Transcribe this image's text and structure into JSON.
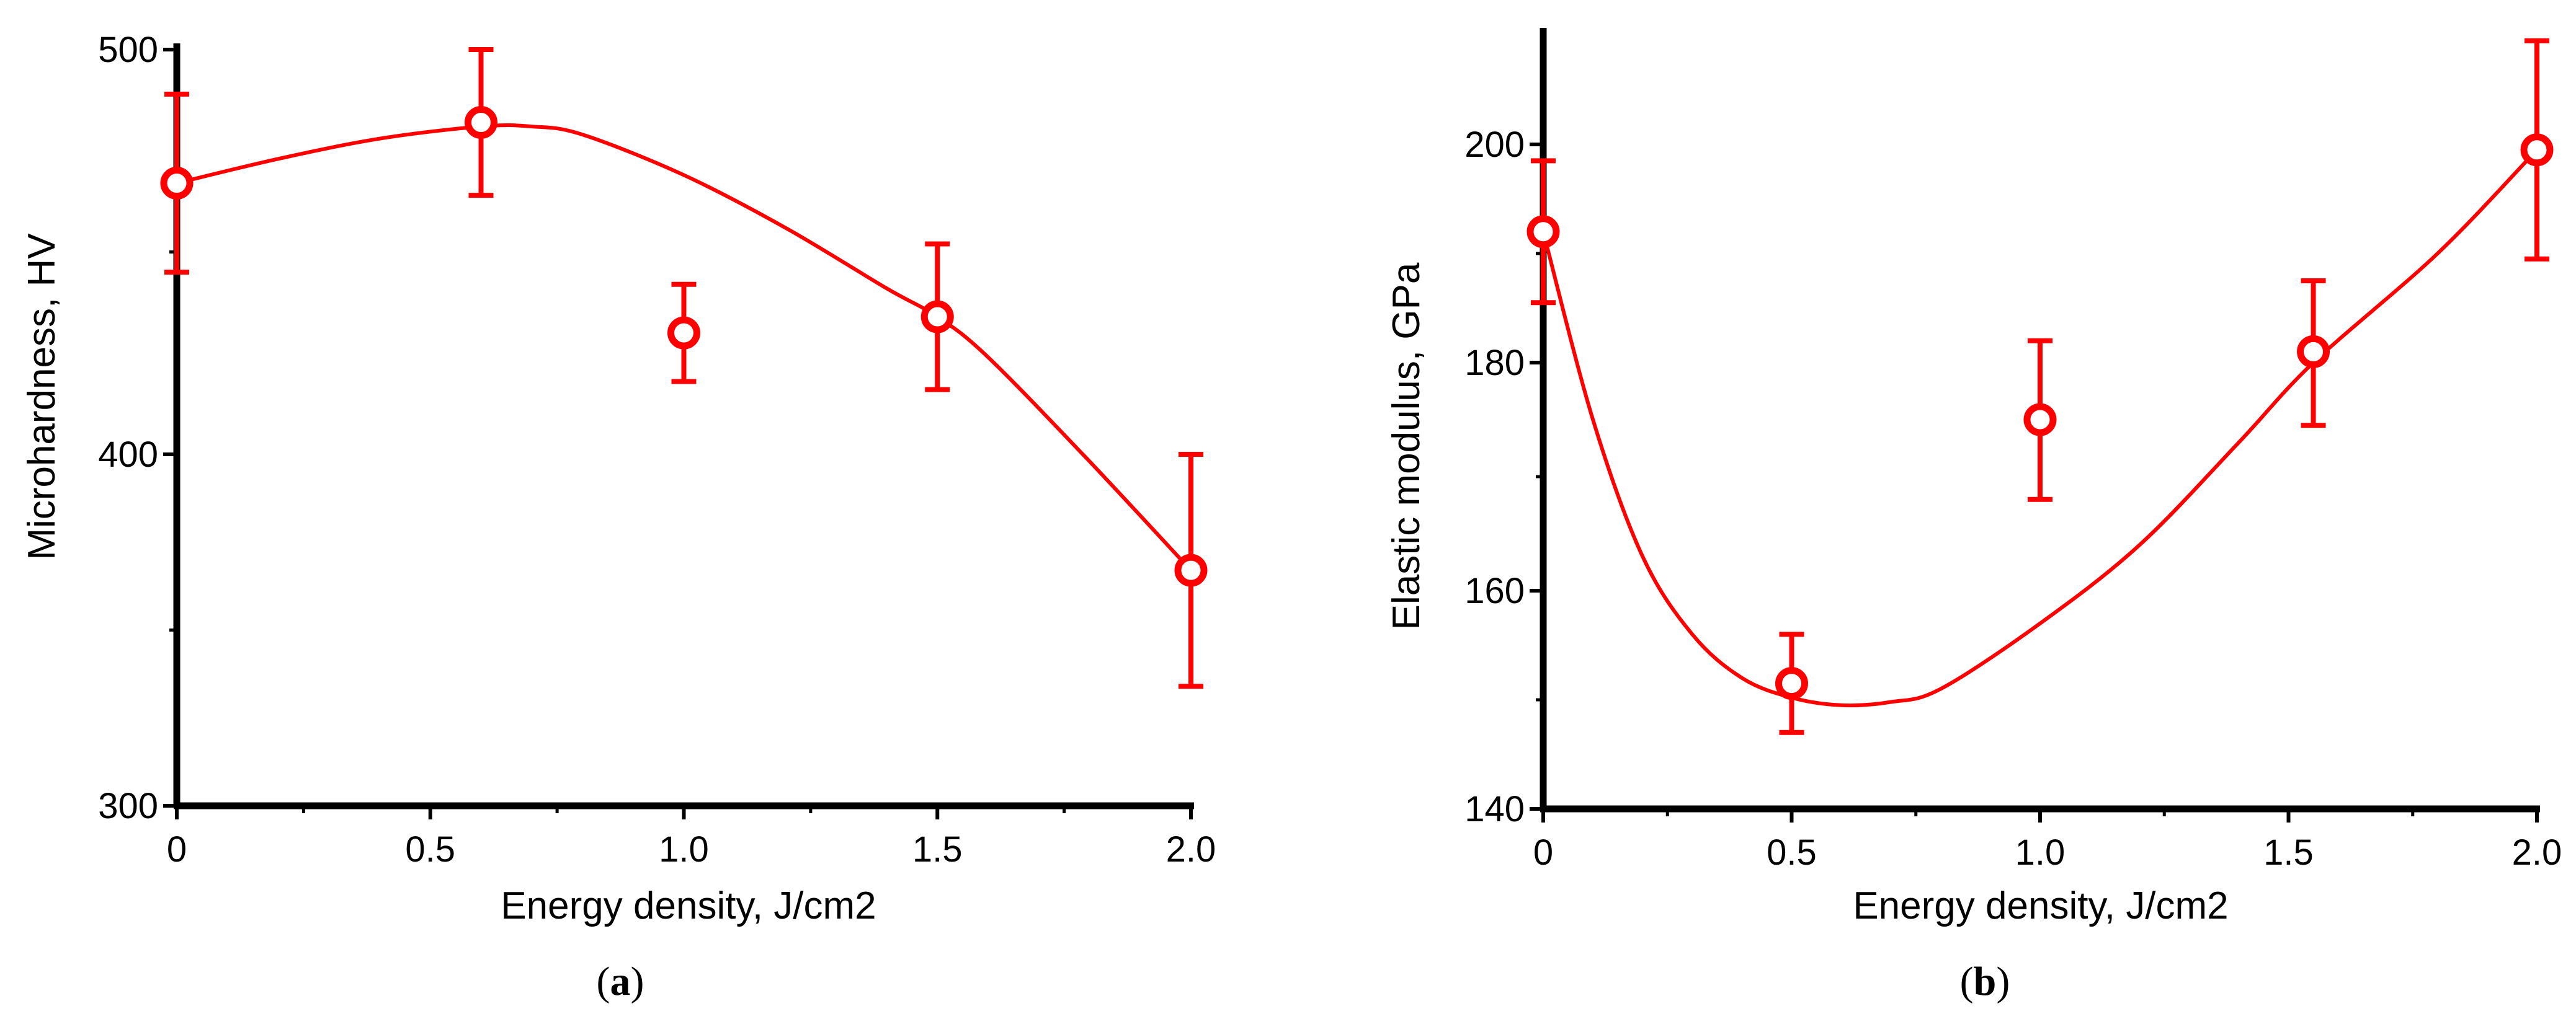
{
  "chart_data": [
    {
      "type": "scatter",
      "caption": "a",
      "xlabel": "Energy density, J/cm2",
      "ylabel": "Microhardness, HV",
      "xlim": [
        0,
        2.0
      ],
      "ylim": [
        300,
        500
      ],
      "x_ticks": [
        "0",
        "0.5",
        "1.0",
        "1.5",
        "2.0"
      ],
      "y_ticks": [
        "300",
        "400",
        "500"
      ],
      "color": "#ff0000",
      "points": [
        {
          "x": 0.0,
          "y": 467,
          "err": 22
        },
        {
          "x": 0.6,
          "y": 482,
          "err": 18
        },
        {
          "x": 1.0,
          "y": 430,
          "err": 12
        },
        {
          "x": 1.5,
          "y": 434,
          "err": 18
        },
        {
          "x": 2.0,
          "y": 367,
          "err": 33
        }
      ],
      "fit": {
        "x": [
          0.0,
          0.2,
          0.4,
          0.6,
          0.7,
          0.8,
          1.0,
          1.2,
          1.4,
          1.5,
          1.6,
          1.8,
          2.0
        ],
        "y": [
          467,
          473,
          478,
          481,
          481,
          479,
          469,
          456,
          441,
          434,
          424,
          398,
          367
        ]
      }
    },
    {
      "type": "scatter",
      "caption": "b",
      "xlabel": "Energy density, J/cm2",
      "ylabel": "Elastic modulus, GPa",
      "xlim": [
        0,
        2.0
      ],
      "ylim": [
        140,
        210
      ],
      "x_ticks": [
        "0",
        "0.5",
        "1.0",
        "1.5",
        "2.0"
      ],
      "y_ticks": [
        "140",
        "160",
        "180",
        "200"
      ],
      "color": "#ff0000",
      "points": [
        {
          "x": 0.0,
          "y": 192,
          "err": 6.5
        },
        {
          "x": 0.5,
          "y": 151.5,
          "err": 4.5
        },
        {
          "x": 1.0,
          "y": 175,
          "err": 7
        },
        {
          "x": 1.55,
          "y": 181,
          "err": 6.5
        },
        {
          "x": 2.0,
          "y": 199.5,
          "err": 10
        }
      ],
      "fit": {
        "x": [
          0.0,
          0.1,
          0.2,
          0.3,
          0.4,
          0.5,
          0.6,
          0.7,
          0.8,
          1.0,
          1.2,
          1.4,
          1.55,
          1.8,
          2.0
        ],
        "y": [
          192,
          175,
          163,
          156,
          152,
          150.2,
          149.5,
          149.8,
          151,
          157,
          164,
          173,
          180,
          190,
          199.5
        ]
      }
    }
  ]
}
